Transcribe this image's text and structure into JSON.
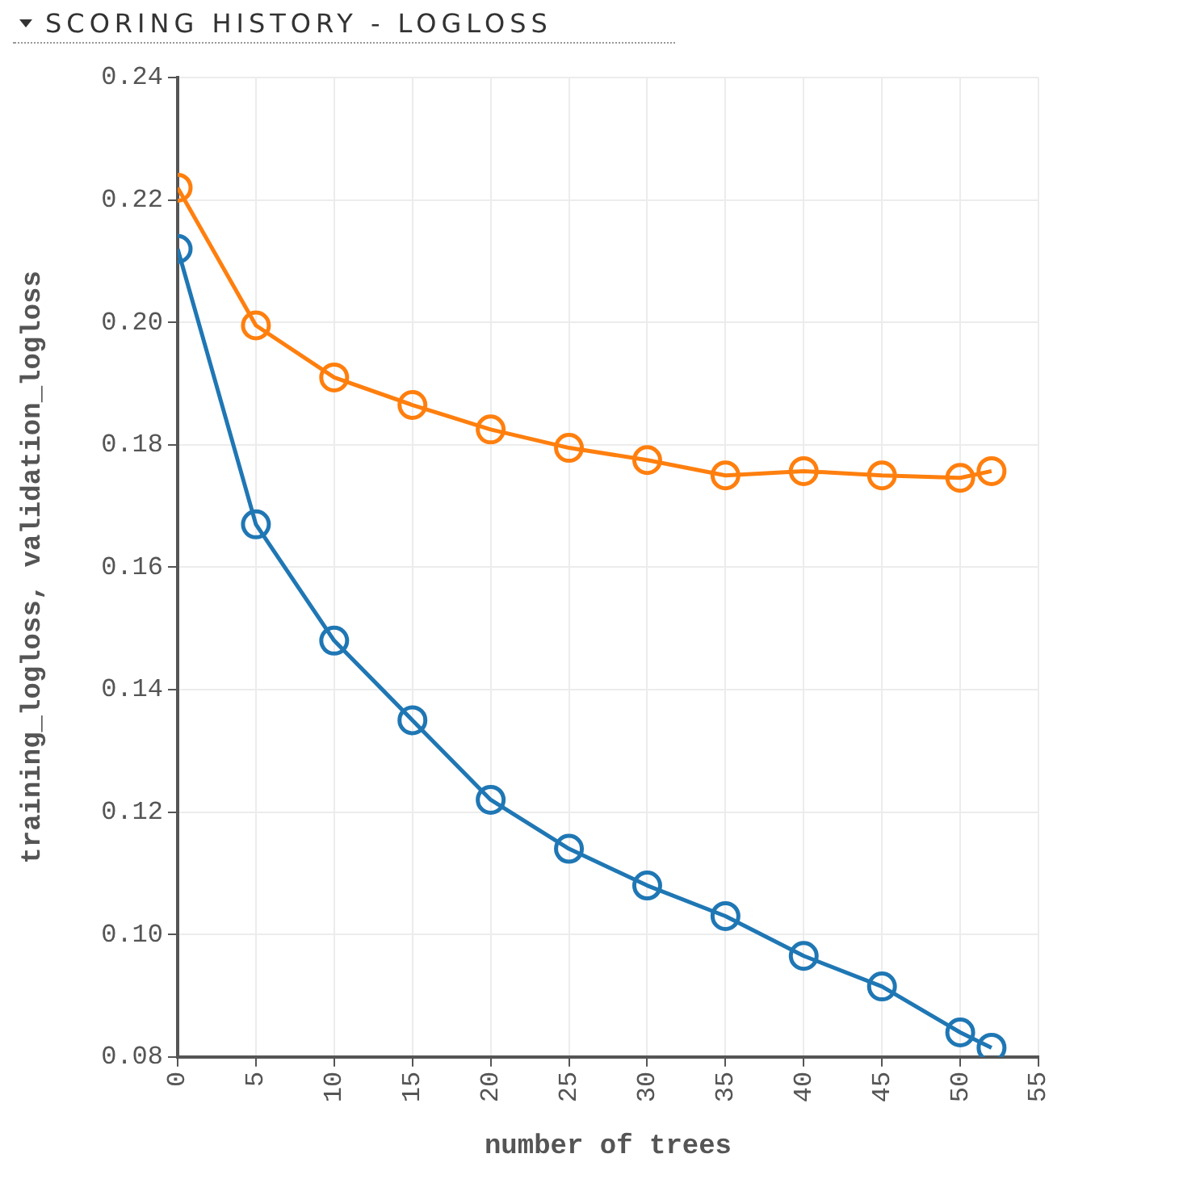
{
  "chart_data": {
    "type": "line",
    "title": "SCORING HISTORY - LOGLOSS",
    "xlabel": "number of trees",
    "ylabel": "training_logloss, validation_logloss",
    "x": [
      0,
      5,
      10,
      15,
      20,
      25,
      30,
      35,
      40,
      45,
      50,
      52
    ],
    "series": [
      {
        "color": "#1f77b4",
        "values": [
          0.212,
          0.167,
          0.148,
          0.135,
          0.122,
          0.114,
          0.108,
          0.103,
          0.0965,
          0.0915,
          0.084,
          0.0815
        ]
      },
      {
        "color": "#ff7f0e",
        "values": [
          0.222,
          0.1995,
          0.191,
          0.1865,
          0.1825,
          0.1795,
          0.1775,
          0.175,
          0.1757,
          0.175,
          0.1746,
          0.1757
        ]
      }
    ],
    "xlim": [
      0,
      55
    ],
    "xticks": [
      0,
      5,
      10,
      15,
      20,
      25,
      30,
      35,
      40,
      45,
      50,
      55
    ],
    "ylim": [
      0.08,
      0.24
    ],
    "yticks": [
      0.08,
      {
        "value": 0.1,
        "label": "0.10"
      },
      0.12,
      0.14,
      0.16,
      0.18,
      {
        "value": 0.2,
        "label": "0.20"
      },
      0.22,
      0.24
    ],
    "grid": true,
    "marker": "circle",
    "line_style": "solid"
  }
}
